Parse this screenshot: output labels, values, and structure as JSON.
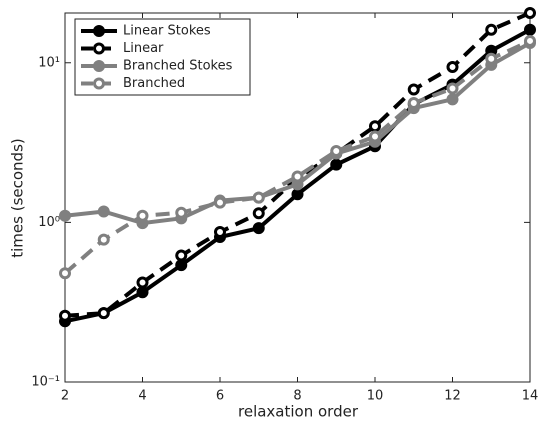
{
  "chart_data": {
    "type": "line",
    "x_label": "relaxation order",
    "y_label": "times (seconds)",
    "x": [
      2,
      3,
      4,
      5,
      6,
      7,
      8,
      9,
      10,
      11,
      12,
      13,
      14
    ],
    "series": [
      {
        "name": "Linear Stokes",
        "color": "#000000",
        "linestyle": "solid",
        "marker_filled": true,
        "values": [
          0.24,
          0.27,
          0.365,
          0.54,
          0.81,
          0.92,
          1.5,
          2.3,
          3.0,
          5.5,
          7.3,
          11.9,
          16.1
        ]
      },
      {
        "name": "Linear",
        "color": "#000000",
        "linestyle": "dashed",
        "marker_filled": false,
        "values": [
          0.26,
          0.27,
          0.42,
          0.62,
          0.87,
          1.14,
          1.9,
          2.7,
          4.0,
          6.8,
          9.4,
          16.1,
          20.5
        ]
      },
      {
        "name": "Branched Stokes",
        "color": "#808080",
        "linestyle": "solid",
        "marker_filled": true,
        "values": [
          1.1,
          1.17,
          0.99,
          1.06,
          1.37,
          1.43,
          1.73,
          2.7,
          3.2,
          5.2,
          5.9,
          9.7,
          13.3
        ]
      },
      {
        "name": "Branched",
        "color": "#808080",
        "linestyle": "dashed",
        "marker_filled": false,
        "values": [
          0.48,
          0.78,
          1.1,
          1.15,
          1.33,
          1.43,
          1.94,
          2.8,
          3.45,
          5.6,
          6.9,
          10.6,
          13.7
        ]
      }
    ],
    "xlim": [
      2,
      14
    ],
    "xticks": [
      2,
      4,
      6,
      8,
      10,
      12,
      14
    ],
    "ylim": [
      0.1,
      20.5
    ],
    "log_y": true,
    "yticks": [
      {
        "value": 0.1,
        "label": "10⁻¹"
      },
      {
        "value": 1,
        "label": "10⁰"
      },
      {
        "value": 10,
        "label": "10¹"
      }
    ],
    "legend": "upper left"
  }
}
